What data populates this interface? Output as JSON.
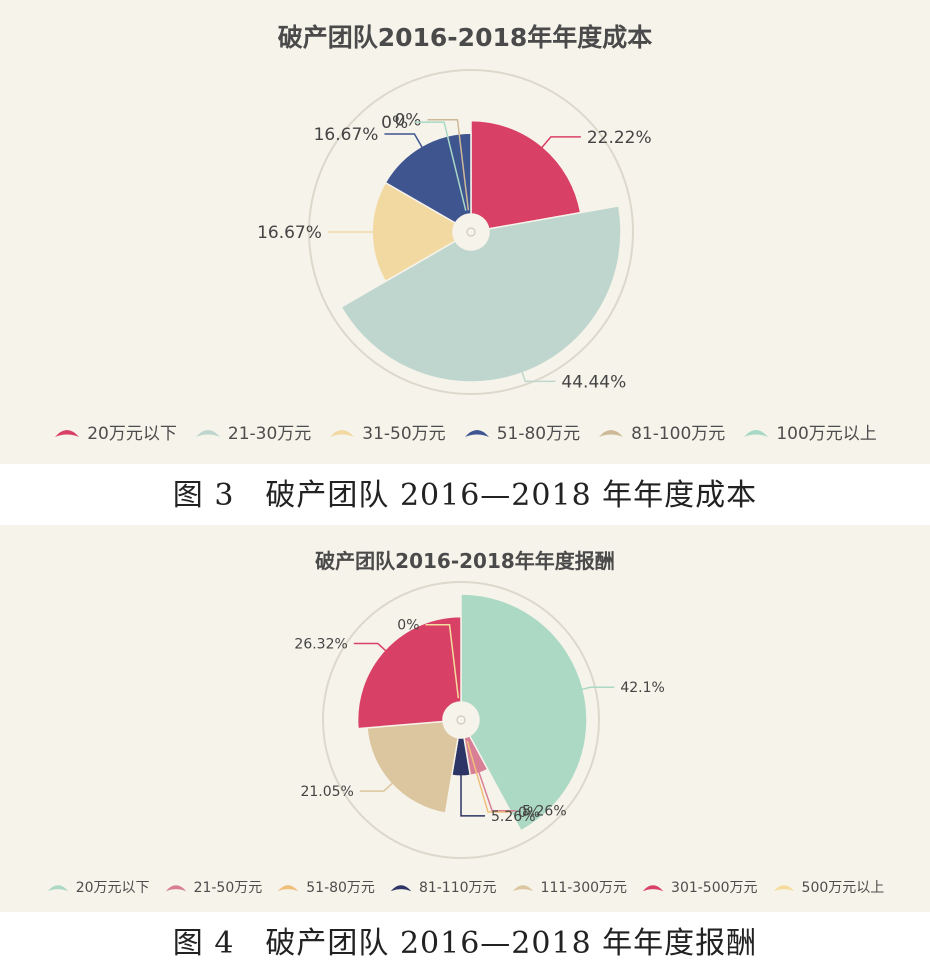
{
  "chart_data": [
    {
      "type": "pie",
      "variant": "nightingale-rose",
      "title": "破产团队2016-2018年年度成本",
      "caption": "图 3　破产团队 2016—2018 年年度成本",
      "categories": [
        "20万元以下",
        "21-30万元",
        "31-50万元",
        "51-80万元",
        "81-100万元",
        "100万元以上"
      ],
      "values": [
        22.22,
        44.44,
        16.67,
        16.67,
        0,
        0
      ],
      "labels": [
        "22.22%",
        "44.44%",
        "16.67%",
        "16.67%",
        "0%",
        "0%"
      ],
      "colors": [
        "#d94066",
        "#bfd6cf",
        "#f2d9a2",
        "#3f5590",
        "#cdb998",
        "#a9d9c6"
      ],
      "legend_position": "bottom"
    },
    {
      "type": "pie",
      "variant": "nightingale-rose",
      "title": "破产团队2016-2018年年度报酬",
      "caption": "图 4　破产团队 2016—2018 年年度报酬",
      "categories": [
        "20万元以下",
        "21-50万元",
        "51-80万元",
        "81-110万元",
        "111-300万元",
        "301-500万元",
        "500万元以上"
      ],
      "values": [
        42.1,
        5.26,
        0,
        5.26,
        21.05,
        26.32,
        0
      ],
      "labels": [
        "42.1%",
        "5.26%",
        "0%",
        "5.26%",
        "21.05%",
        "26.32%",
        "0%"
      ],
      "colors": [
        "#acd9c4",
        "#d97f95",
        "#f0bf7a",
        "#2c3565",
        "#dcc69f",
        "#d94066",
        "#f3dc9c"
      ],
      "legend_position": "bottom"
    }
  ]
}
